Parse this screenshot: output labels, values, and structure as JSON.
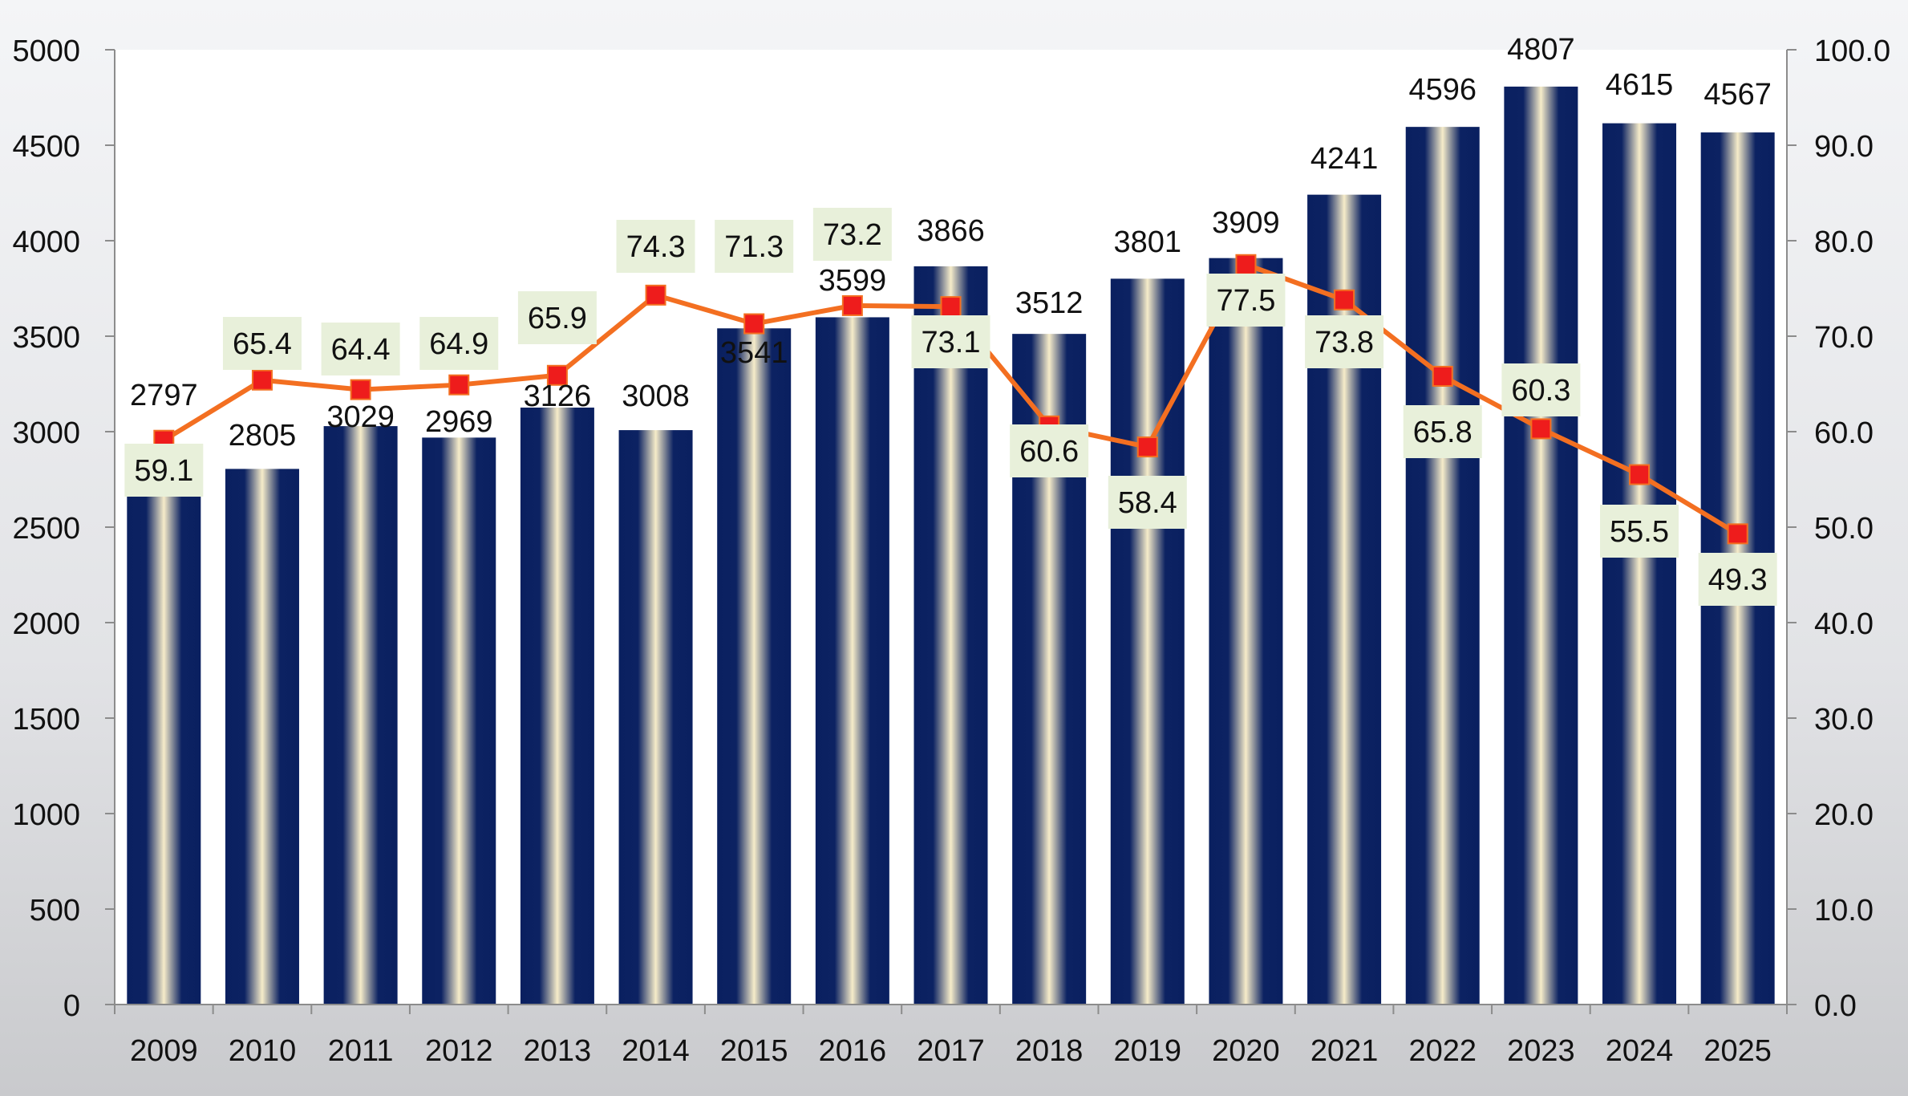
{
  "chart_data": {
    "type": "bar",
    "categories": [
      "2009",
      "2010",
      "2011",
      "2012",
      "2013",
      "2014",
      "2015",
      "2016",
      "2017",
      "2018",
      "2019",
      "2020",
      "2021",
      "2022",
      "2023",
      "2024",
      "2025"
    ],
    "series": [
      {
        "type": "bar",
        "axis": "left",
        "values": [
          2797,
          2805,
          3029,
          2969,
          3126,
          3008,
          3541,
          3599,
          3866,
          3512,
          3801,
          3909,
          4241,
          4596,
          4807,
          4615,
          4567
        ],
        "labels": [
          "2797",
          "2805",
          "3029",
          "2969",
          "3126",
          "3008",
          "3541",
          "3599",
          "3866",
          "3512",
          "3801",
          "3909",
          "4241",
          "4596",
          "4807",
          "4615",
          "4567"
        ],
        "color": "#0a2060"
      },
      {
        "type": "line",
        "axis": "right",
        "values": [
          59.1,
          65.4,
          64.4,
          64.9,
          65.9,
          74.3,
          71.3,
          73.2,
          73.1,
          60.6,
          58.4,
          77.5,
          73.8,
          65.8,
          60.3,
          55.5,
          49.3
        ],
        "labels": [
          "59.1",
          "65.4",
          "64.4",
          "64.9",
          "65.9",
          "74.3",
          "71.3",
          "73.2",
          "73.1",
          "60.6",
          "58.4",
          "77.5",
          "73.8",
          "65.8",
          "60.3",
          "55.5",
          "49.3"
        ],
        "color": "#f36f21",
        "marker_color": "#ee1c1c"
      }
    ],
    "y_left": {
      "lim": [
        0,
        5000
      ],
      "ticks": [
        0,
        500,
        1000,
        1500,
        2000,
        2500,
        3000,
        3500,
        4000,
        4500,
        5000
      ],
      "tick_labels": [
        "0",
        "500",
        "1000",
        "1500",
        "2000",
        "2500",
        "3000",
        "3500",
        "4000",
        "4500",
        "5000"
      ]
    },
    "y_right": {
      "lim": [
        0,
        100
      ],
      "ticks": [
        0,
        10,
        20,
        30,
        40,
        50,
        60,
        70,
        80,
        90,
        100
      ],
      "tick_labels": [
        "0.0",
        "10.0",
        "20.0",
        "30.0",
        "40.0",
        "50.0",
        "60.0",
        "70.0",
        "80.0",
        "90.0",
        "100.0"
      ]
    },
    "grid": false,
    "legend": "none",
    "line_label_background": "#e8f0da"
  }
}
